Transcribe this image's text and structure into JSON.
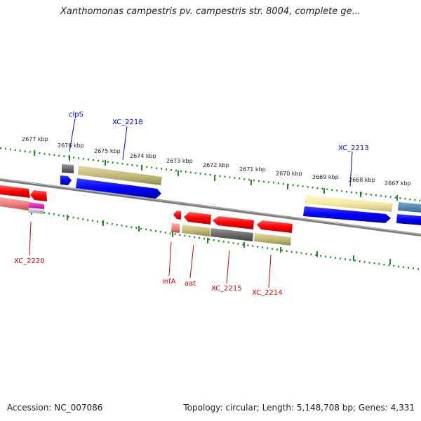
{
  "title": "Xanthomonas campestris pv. campestris str. 8004, complete ge...",
  "footer": {
    "accession": "Accession: NC_007086",
    "topology": "Topology: circular; Length: 5,148,708 bp; Genes: 4,331"
  },
  "scale": {
    "ticks": [
      "2677 kbp",
      "2676 kbp",
      "2675 kbp",
      "2674 kbp",
      "2673 kbp",
      "2672 kbp",
      "2671 kbp",
      "2670 kbp",
      "2669 kbp",
      "2668 kbp",
      "2667 kbp"
    ]
  },
  "gene_labels": {
    "clps": "clpS",
    "xc2218": "XC_2218",
    "xc2213": "XC_2213",
    "xc2220": "XC_2220",
    "infa": "infA",
    "aat": "aat",
    "xc2215": "XC_2215",
    "xc2214": "XC_2214"
  },
  "colors": {
    "forward_label": "#0000cc",
    "reverse_label": "#cc0000",
    "backbone": "#808080",
    "tick": "#228822"
  }
}
